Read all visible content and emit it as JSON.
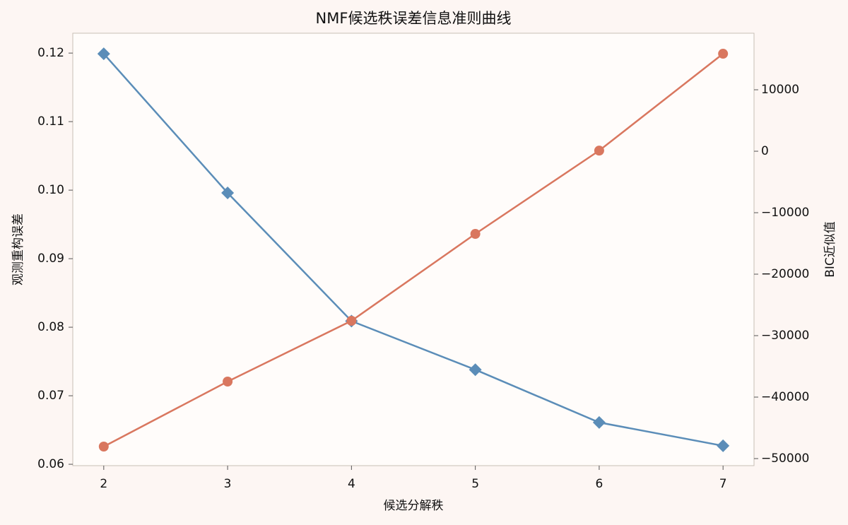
{
  "chart_data": {
    "type": "line",
    "title": "NMF候选秩误差信息准则曲线",
    "xlabel": "候选分解秩",
    "ylabel": "观测重构误差",
    "y2label": "BIC近似值",
    "x": [
      2,
      3,
      4,
      5,
      6,
      7
    ],
    "xlim": [
      1.75,
      7.25
    ],
    "xticks": [
      2,
      3,
      4,
      5,
      6,
      7
    ],
    "ylim": [
      0.0598,
      0.1229
    ],
    "yticks": [
      {
        "value": 0.06,
        "label": "0.06"
      },
      {
        "value": 0.07,
        "label": "0.07"
      },
      {
        "value": 0.08,
        "label": "0.08"
      },
      {
        "value": 0.09,
        "label": "0.09"
      },
      {
        "value": 0.1,
        "label": "0.10"
      },
      {
        "value": 0.11,
        "label": "0.11"
      },
      {
        "value": 0.12,
        "label": "0.12"
      }
    ],
    "y2lim": [
      -51150,
      19200
    ],
    "y2ticks": [
      {
        "value": -50000,
        "label": "−50000"
      },
      {
        "value": -40000,
        "label": "−40000"
      },
      {
        "value": -30000,
        "label": "−30000"
      },
      {
        "value": -20000,
        "label": "−20000"
      },
      {
        "value": -10000,
        "label": "−10000"
      },
      0,
      10000
    ],
    "series": [
      {
        "color": "#5b8db8",
        "marker": "diamond",
        "axis": "y",
        "values": [
          0.1199,
          0.0996,
          0.0809,
          0.0738,
          0.0661,
          0.0627
        ]
      },
      {
        "color": "#d9775f",
        "marker": "circle",
        "axis": "y2",
        "values": [
          -48046,
          -37471,
          -27586,
          -13448,
          100,
          15862
        ]
      }
    ]
  }
}
